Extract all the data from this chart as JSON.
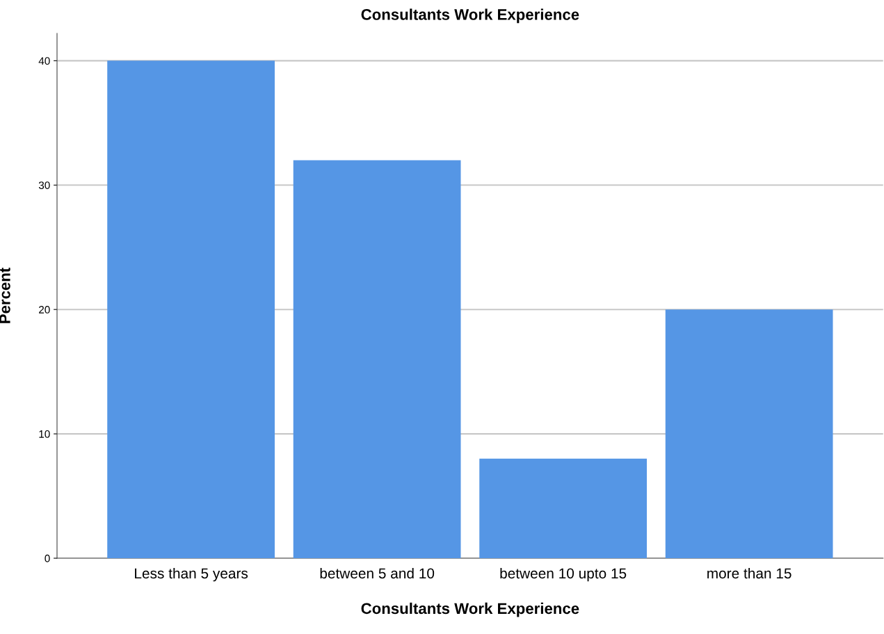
{
  "chart_data": {
    "type": "bar",
    "title": "Consultants Work Experience",
    "xlabel": "Consultants Work Experience",
    "ylabel": "Percent",
    "categories": [
      "Less than 5 years",
      "between 5 and 10",
      "between 10 upto 15",
      "more than 15"
    ],
    "values": [
      40,
      32,
      8,
      20
    ],
    "color": "#5596e5",
    "ylim": [
      0,
      42.2
    ],
    "yticks": [
      0,
      10,
      20,
      30,
      40
    ],
    "grid": "y",
    "legend": false
  }
}
